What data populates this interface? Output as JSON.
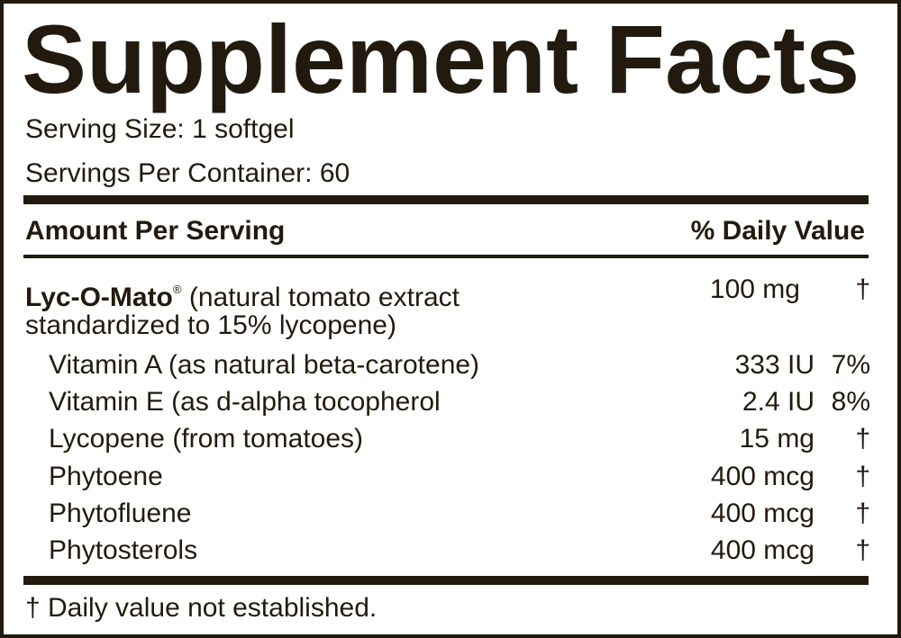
{
  "title": "Supplement Facts",
  "serving_size": "Serving Size: 1 softgel",
  "servings_per_container": "Servings Per Container: 60",
  "header": {
    "amount_per_serving": "Amount Per Serving",
    "daily_value": "% Daily Value"
  },
  "main_row": {
    "name_bold": "Lyc-O-Mato",
    "name_mark": "®",
    "name_line1": "(natural tomato extract",
    "name_line2": "standardized to 15% lycopene)",
    "amount": "100 mg",
    "dv": "†"
  },
  "rows": [
    {
      "name": "Vitamin A (as natural beta-carotene)",
      "amount": "333 IU",
      "dv": "7%"
    },
    {
      "name": "Vitamin E (as d-alpha tocopherol",
      "amount": "2.4 IU",
      "dv": "8%"
    },
    {
      "name": "Lycopene (from tomatoes)",
      "amount": "15 mg",
      "dv": "†"
    },
    {
      "name": "Phytoene",
      "amount": "400 mcg",
      "dv": "†"
    },
    {
      "name": "Phytofluene",
      "amount": "400 mcg",
      "dv": "†"
    },
    {
      "name": "Phytosterols",
      "amount": "400 mcg",
      "dv": "†"
    }
  ],
  "footnote": "† Daily value not established."
}
